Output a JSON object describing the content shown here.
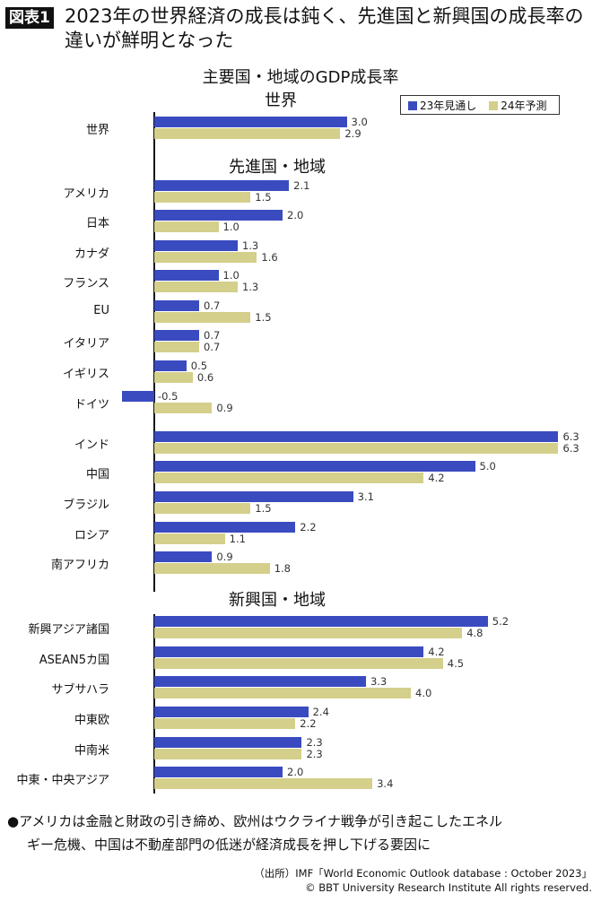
{
  "header": {
    "badge": "図表1",
    "title": "2023年の世界経済の成長は鈍く、先進国と新興国の成長率の違いが鮮明となった"
  },
  "chart_data": {
    "type": "bar",
    "orientation": "horizontal",
    "title": "主要国・地域のGDP成長率",
    "colors": {
      "23年見通し": "#3a4bc0",
      "24年予測": "#d4cf8b"
    },
    "legend": {
      "position": "top-right",
      "entries": [
        "23年見通し",
        "24年予測"
      ]
    },
    "sections": [
      {
        "heading": "世界",
        "categories": [
          "世界"
        ]
      },
      {
        "heading": "先進国・地域",
        "categories": [
          "アメリカ",
          "日本",
          "カナダ",
          "フランス",
          "EU",
          "イタリア",
          "イギリス",
          "ドイツ",
          "インド",
          "中国",
          "ブラジル",
          "ロシア",
          "南アフリカ"
        ]
      },
      {
        "heading": "新興国・地域",
        "categories": [
          "新興アジア諸国",
          "ASEAN5カ国",
          "サブサハラ",
          "中東欧",
          "中南米",
          "中東・中央アジア"
        ]
      }
    ],
    "series": [
      {
        "name": "23年見通し",
        "values": [
          3.0,
          2.1,
          2.0,
          1.3,
          1.0,
          0.7,
          0.7,
          0.5,
          -0.5,
          6.3,
          5.0,
          3.1,
          2.2,
          0.9,
          5.2,
          4.2,
          3.3,
          2.4,
          2.3,
          2.0
        ]
      },
      {
        "name": "24年予測",
        "values": [
          2.9,
          1.5,
          1.0,
          1.6,
          1.3,
          1.5,
          0.7,
          0.6,
          0.9,
          6.3,
          4.2,
          1.5,
          1.1,
          1.8,
          4.8,
          4.5,
          4.0,
          2.2,
          2.3,
          3.4
        ]
      }
    ],
    "value_labels": {
      "23年見通し": [
        "3.0",
        "2.1",
        "2.0",
        "1.3",
        "1.0",
        "0.7",
        "0.7",
        "0.5",
        "-0.5",
        "6.3",
        "5.0",
        "3.1",
        "2.2",
        "0.9",
        "5.2",
        "4.2",
        "3.3",
        "2.4",
        "2.3",
        "2.0"
      ],
      "24年予測": [
        "2.9",
        "1.5",
        "1.0",
        "1.6",
        "1.3",
        "1.5",
        "0.7",
        "0.6",
        "0.9",
        "6.3",
        "4.2",
        "1.5",
        "1.1",
        "1.8",
        "4.8",
        "4.5",
        "4.0",
        "2.2",
        "2.3",
        "3.4"
      ]
    },
    "grid": false
  },
  "note": {
    "line1": "●アメリカは金融と財政の引き締め、欧州はウクライナ戦争が引き起こしたエネル",
    "line2": "ギー危機、中国は不動産部門の低迷が経済成長を押し下げる要因に"
  },
  "source": {
    "line1": "（出所）IMF「World Economic Outlook database : October 2023」",
    "line2": "© BBT University Research Institute All rights reserved."
  }
}
